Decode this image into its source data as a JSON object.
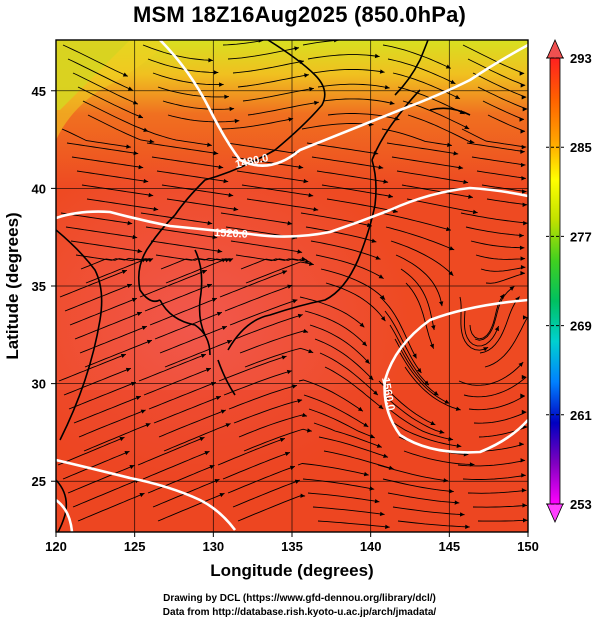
{
  "title": "MSM 18Z16Aug2025 (850.0hPa)",
  "map": {
    "lon_range": [
      120,
      150
    ],
    "lat_range": [
      22.4,
      47.6
    ],
    "xlabel": "Longitude (degrees)",
    "ylabel": "Latitude  (degrees)",
    "x_ticks": [
      "120",
      "125",
      "130",
      "135",
      "140",
      "145",
      "150"
    ],
    "y_ticks": [
      "25",
      "30",
      "35",
      "40",
      "45"
    ],
    "field": "temperature shading with streamlines",
    "contour_labels": [
      "1480.0",
      "1520.0",
      "1560.0"
    ],
    "colors": {
      "contour": "#ffffff",
      "streamline": "#000000",
      "coastline": "#000000",
      "field_warm": "#ee4422",
      "field_hot": "#f05050",
      "field_cool": "#e0e020"
    }
  },
  "colorbar": {
    "min": 253,
    "max": 293,
    "tick_labels": [
      "293",
      "285",
      "277",
      "269",
      "261",
      "253"
    ],
    "colors": [
      "#ff00ff",
      "#8000c0",
      "#0000c0",
      "#0080ff",
      "#00d0d0",
      "#00c060",
      "#40d020",
      "#c0e000",
      "#ffff00",
      "#ffa000",
      "#ff6000",
      "#ff2020"
    ]
  },
  "credits": {
    "line1": "Drawing by DCL (https://www.gfd-dennou.org/library/dcl/)",
    "line2": "Data from http://database.rish.kyoto-u.ac.jp/arch/jmadata/"
  }
}
